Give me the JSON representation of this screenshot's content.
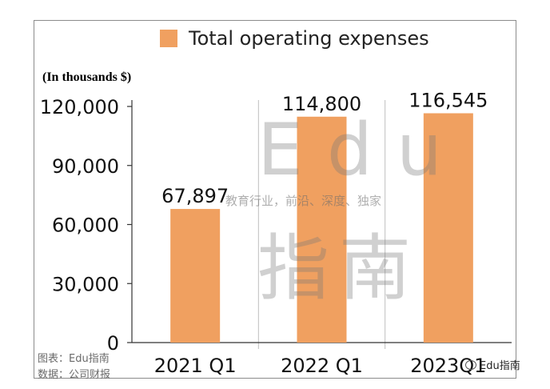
{
  "chart_data": {
    "type": "bar",
    "categories": [
      "2021 Q1",
      "2022 Q1",
      "2023Q1"
    ],
    "series": [
      {
        "name": "Total operating expenses",
        "values": [
          67897,
          114800,
          116545
        ],
        "color": "#f0a060"
      }
    ],
    "data_labels": [
      "67,897",
      "114,800",
      "116,545"
    ],
    "y_ticks": [
      "0",
      "30,000",
      "60,000",
      "90,000",
      "120,000"
    ],
    "y_tick_values": [
      0,
      30000,
      60000,
      90000,
      120000
    ],
    "ylim": [
      0,
      120000
    ],
    "units_note": "(In thousands $)",
    "legend_position": "top",
    "grid": "vertical-separators"
  },
  "watermark": {
    "brand": "Edu",
    "tagline": "教育行业，前沿、深度、独家",
    "name": "指南"
  },
  "footnotes": {
    "chart_by": "图表：Edu指南",
    "source": "数据：公司财报"
  },
  "credit": {
    "handle": "Edu指南"
  }
}
